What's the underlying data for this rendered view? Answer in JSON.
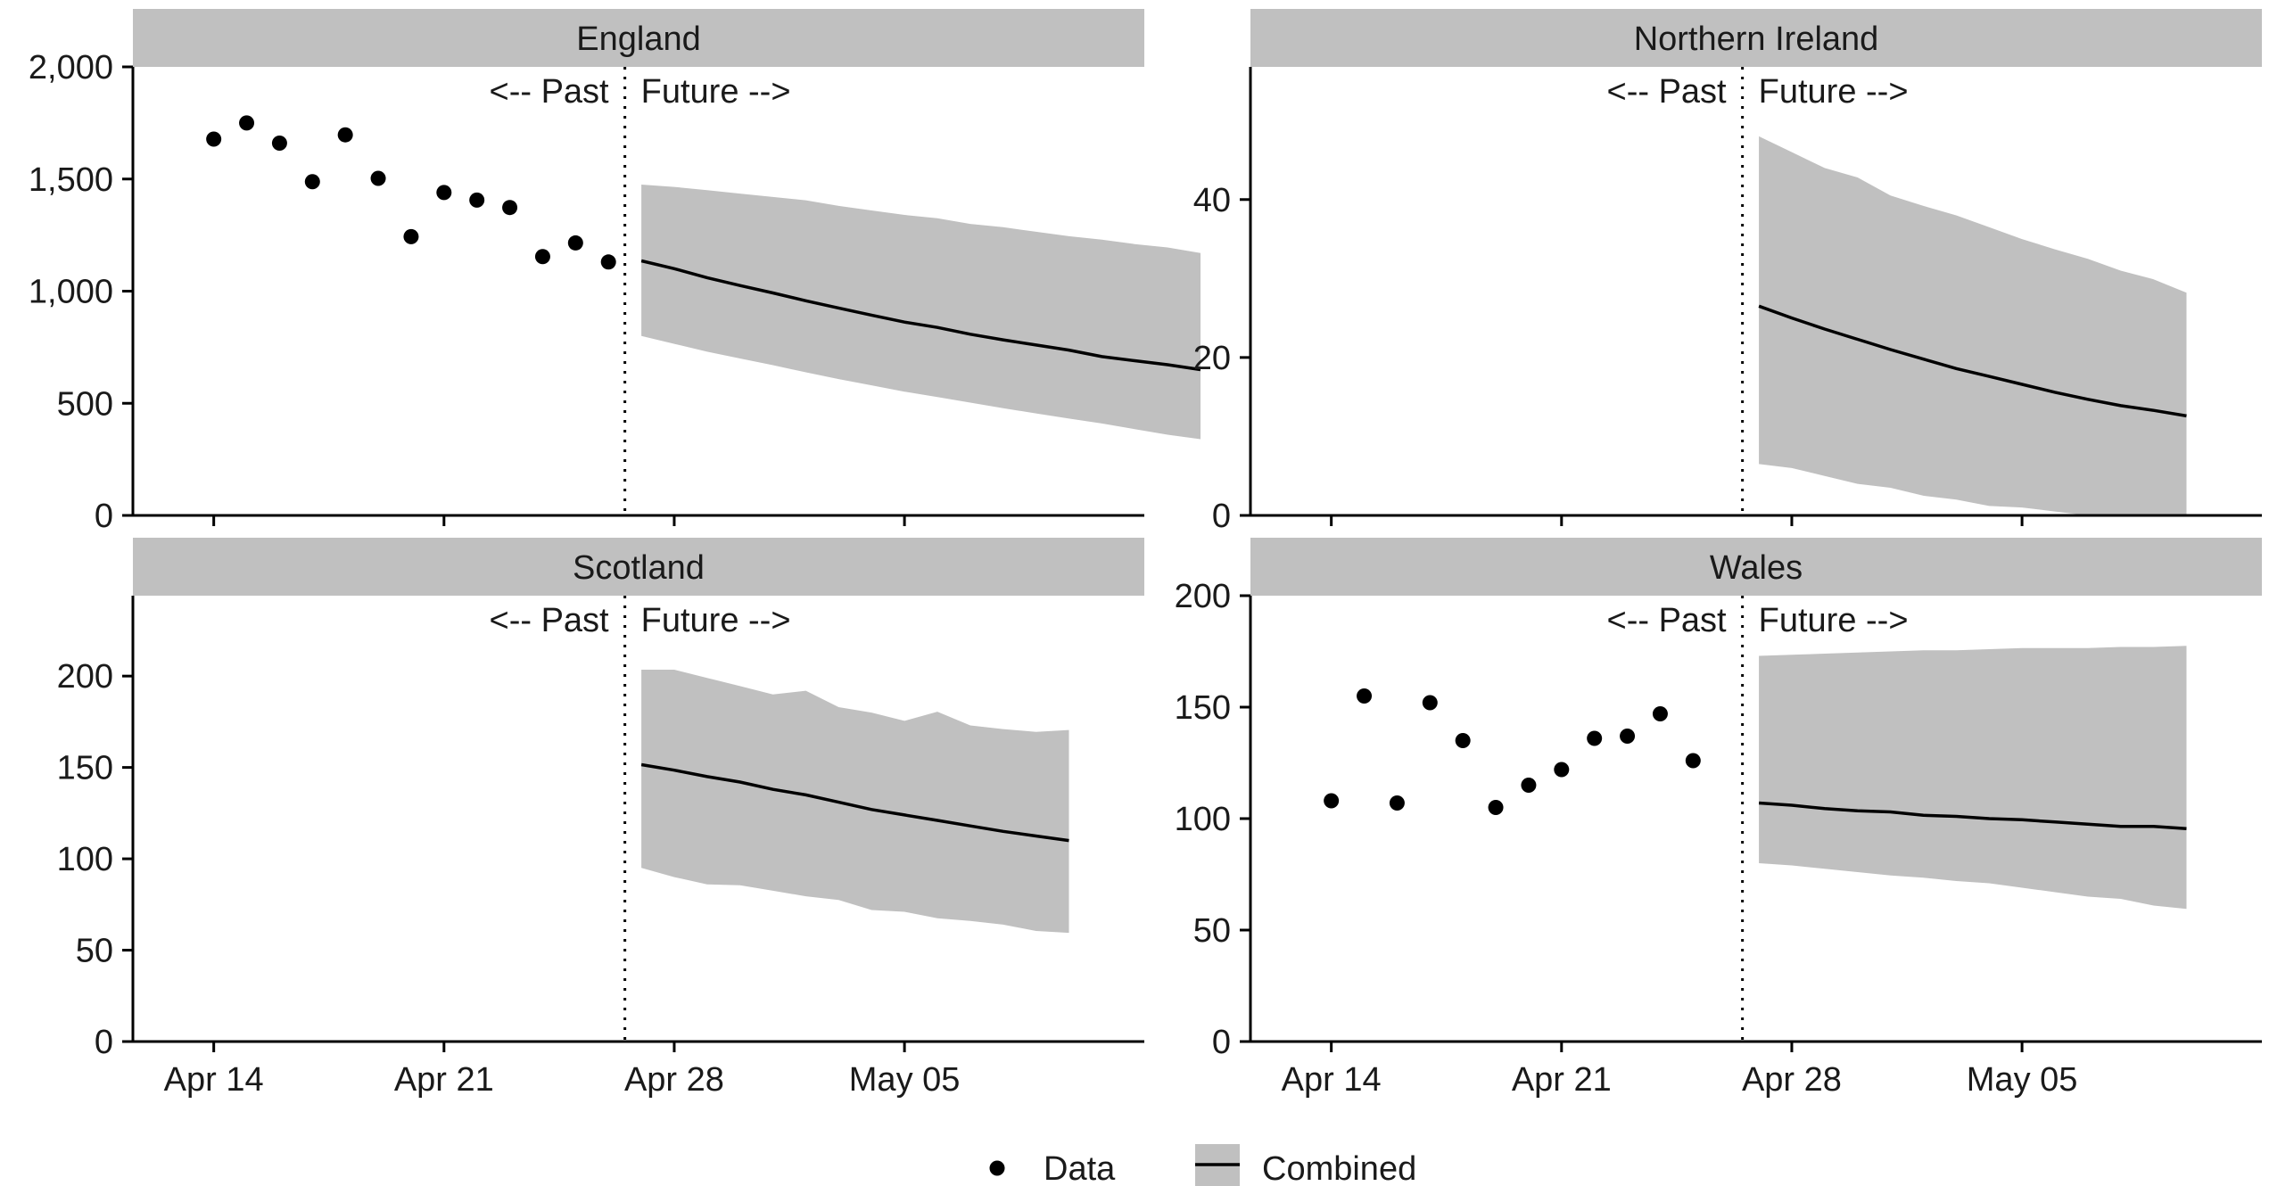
{
  "chart_data": {
    "type": "line",
    "panels": [
      {
        "title": "England",
        "ylim": [
          0,
          2000
        ],
        "yticks": [
          0,
          500,
          1000,
          1500,
          2000
        ],
        "ytick_labels": [
          "0",
          "500",
          "1,000",
          "1,500",
          "2,000"
        ],
        "points": [
          [
            "2020-04-14",
            1678
          ],
          [
            "2020-04-15",
            1750
          ],
          [
            "2020-04-16",
            1660
          ],
          [
            "2020-04-17",
            1488
          ],
          [
            "2020-04-18",
            1697
          ],
          [
            "2020-04-19",
            1503
          ],
          [
            "2020-04-20",
            1243
          ],
          [
            "2020-04-21",
            1440
          ],
          [
            "2020-04-22",
            1406
          ],
          [
            "2020-04-23",
            1373
          ],
          [
            "2020-04-24",
            1154
          ],
          [
            "2020-04-25",
            1215
          ],
          [
            "2020-04-26",
            1130
          ]
        ],
        "forecast": [
          [
            "2020-04-27",
            1135,
            800,
            1475
          ],
          [
            "2020-04-28",
            1100,
            765,
            1465
          ],
          [
            "2020-04-29",
            1060,
            730,
            1450
          ],
          [
            "2020-04-30",
            1025,
            700,
            1435
          ],
          [
            "2020-05-01",
            992,
            670,
            1420
          ],
          [
            "2020-05-02",
            957,
            638,
            1405
          ],
          [
            "2020-05-03",
            925,
            608,
            1380
          ],
          [
            "2020-05-04",
            893,
            580,
            1360
          ],
          [
            "2020-05-05",
            862,
            552,
            1340
          ],
          [
            "2020-05-06",
            838,
            528,
            1325
          ],
          [
            "2020-05-07",
            808,
            503,
            1300
          ],
          [
            "2020-05-08",
            783,
            478,
            1285
          ],
          [
            "2020-05-09",
            760,
            455,
            1265
          ],
          [
            "2020-05-10",
            737,
            432,
            1245
          ],
          [
            "2020-05-11",
            708,
            410,
            1230
          ],
          [
            "2020-05-12",
            690,
            385,
            1210
          ],
          [
            "2020-05-13",
            672,
            360,
            1195
          ],
          [
            "2020-05-14",
            650,
            340,
            1170
          ]
        ]
      },
      {
        "title": "Northern Ireland",
        "ylim": [
          0,
          56.8
        ],
        "yticks": [
          0,
          20,
          40
        ],
        "ytick_labels": [
          "0",
          "20",
          "40"
        ],
        "points": [],
        "forecast": [
          [
            "2020-04-27",
            26.5,
            6.5,
            48
          ],
          [
            "2020-04-28",
            25,
            6,
            46
          ],
          [
            "2020-04-29",
            23.6,
            5,
            44
          ],
          [
            "2020-04-30",
            22.3,
            4,
            42.8
          ],
          [
            "2020-05-01",
            21,
            3.5,
            40.5
          ],
          [
            "2020-05-02",
            19.8,
            2.5,
            39.2
          ],
          [
            "2020-05-03",
            18.6,
            2,
            38
          ],
          [
            "2020-05-04",
            17.6,
            1.2,
            36.5
          ],
          [
            "2020-05-05",
            16.6,
            1,
            35
          ],
          [
            "2020-05-06",
            15.6,
            0.5,
            33.7
          ],
          [
            "2020-05-07",
            14.7,
            0,
            32.5
          ],
          [
            "2020-05-08",
            13.9,
            0,
            31
          ],
          [
            "2020-05-09",
            13.3,
            0,
            29.9
          ],
          [
            "2020-05-10",
            12.6,
            0,
            28.2
          ]
        ]
      },
      {
        "title": "Scotland",
        "ylim": [
          0,
          244
        ],
        "yticks": [
          0,
          50,
          100,
          150,
          200
        ],
        "ytick_labels": [
          "0",
          "50",
          "100",
          "150",
          "200"
        ],
        "points": [],
        "forecast": [
          [
            "2020-04-27",
            151.5,
            95,
            203.5
          ],
          [
            "2020-04-28",
            148.5,
            90,
            203.5
          ],
          [
            "2020-04-29",
            145,
            86,
            199
          ],
          [
            "2020-04-30",
            142,
            85.5,
            194.5
          ],
          [
            "2020-05-01",
            138,
            82.5,
            190
          ],
          [
            "2020-05-02",
            135,
            79.5,
            192
          ],
          [
            "2020-05-03",
            131,
            77.5,
            183
          ],
          [
            "2020-05-04",
            127,
            72,
            180
          ],
          [
            "2020-05-05",
            124,
            71,
            175.5
          ],
          [
            "2020-05-06",
            121,
            67.5,
            180.5
          ],
          [
            "2020-05-07",
            118,
            66,
            173
          ],
          [
            "2020-05-08",
            115,
            64,
            171
          ],
          [
            "2020-05-09",
            112.5,
            60.5,
            169.5
          ],
          [
            "2020-05-10",
            110,
            59.5,
            170.5
          ]
        ]
      },
      {
        "title": "Wales",
        "ylim": [
          0,
          200
        ],
        "yticks": [
          0,
          50,
          100,
          150,
          200
        ],
        "ytick_labels": [
          "0",
          "50",
          "100",
          "150",
          "200"
        ],
        "points": [
          [
            "2020-04-14",
            108
          ],
          [
            "2020-04-15",
            155
          ],
          [
            "2020-04-16",
            107
          ],
          [
            "2020-04-17",
            152
          ],
          [
            "2020-04-18",
            135
          ],
          [
            "2020-04-19",
            105
          ],
          [
            "2020-04-20",
            115
          ],
          [
            "2020-04-21",
            122
          ],
          [
            "2020-04-22",
            136
          ],
          [
            "2020-04-23",
            137
          ],
          [
            "2020-04-24",
            147
          ],
          [
            "2020-04-25",
            126
          ]
        ],
        "forecast": [
          [
            "2020-04-27",
            107,
            80,
            173
          ],
          [
            "2020-04-28",
            106,
            79,
            173.5
          ],
          [
            "2020-04-29",
            104.5,
            77.5,
            174
          ],
          [
            "2020-04-30",
            103.5,
            76,
            174.5
          ],
          [
            "2020-05-01",
            103,
            74.5,
            175
          ],
          [
            "2020-05-02",
            101.5,
            73.5,
            175.5
          ],
          [
            "2020-05-03",
            101,
            72,
            175.5
          ],
          [
            "2020-05-04",
            100,
            71,
            176
          ],
          [
            "2020-05-05",
            99.5,
            69,
            176.5
          ],
          [
            "2020-05-06",
            98.5,
            67,
            176.5
          ],
          [
            "2020-05-07",
            97.5,
            65,
            176.5
          ],
          [
            "2020-05-08",
            96.5,
            64,
            177
          ],
          [
            "2020-05-09",
            96.5,
            61,
            177
          ],
          [
            "2020-05-10",
            95.5,
            59.5,
            177.5
          ]
        ]
      }
    ],
    "xlim": [
      "2020-04-11T13:00",
      "2020-05-12T07:00"
    ],
    "xticks": [
      "2020-04-14",
      "2020-04-21",
      "2020-04-28",
      "2020-05-05"
    ],
    "xtick_labels": [
      "Apr 14",
      "Apr 21",
      "Apr 28",
      "May 05"
    ],
    "divider_date": "2020-04-26T12:00",
    "past_label": "<-- Past",
    "future_label": "Future -->",
    "legend": {
      "items": [
        {
          "label": "Data",
          "kind": "point"
        },
        {
          "label": "Combined",
          "kind": "line-band"
        }
      ]
    },
    "colors": {
      "strip": "#c0c0c0",
      "band": "#c0c0c0",
      "line": "#000000",
      "point": "#000000"
    }
  }
}
